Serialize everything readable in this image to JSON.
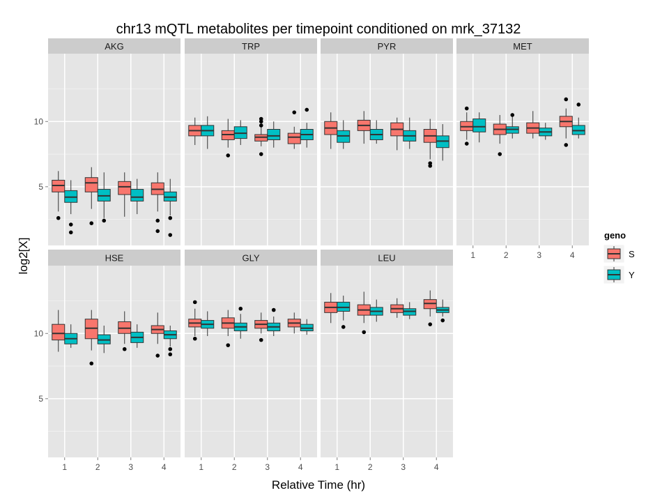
{
  "chart_data": {
    "type": "boxplot",
    "title": "chr13 mQTL metabolites per timepoint conditioned on mrk_37132",
    "xlabel": "Relative Time (hr)",
    "ylabel": "log2[X]",
    "x_categories": [
      "1",
      "2",
      "3",
      "4"
    ],
    "y_ticks": [
      5,
      10
    ],
    "ylim": [
      0.5,
      15.2
    ],
    "ncol": 4,
    "grid": true,
    "legend": {
      "title": "geno",
      "position": "right",
      "entries": [
        {
          "key": "S",
          "color": "#F8766D"
        },
        {
          "key": "Y",
          "color": "#00BFC4"
        }
      ]
    },
    "panels": [
      {
        "name": "AKG",
        "boxes": {
          "S": [
            {
              "time": "1",
              "whislo": 3.1,
              "q1": 4.6,
              "med": 5.1,
              "q3": 5.5,
              "whishi": 6.2,
              "outliers": [
                2.6
              ]
            },
            {
              "time": "2",
              "whislo": 3.3,
              "q1": 4.6,
              "med": 5.3,
              "q3": 5.7,
              "whishi": 6.5,
              "outliers": [
                2.2
              ]
            },
            {
              "time": "3",
              "whislo": 2.7,
              "q1": 4.4,
              "med": 5.0,
              "q3": 5.4,
              "whishi": 6.1,
              "outliers": []
            },
            {
              "time": "4",
              "whislo": 3.1,
              "q1": 4.4,
              "med": 4.8,
              "q3": 5.3,
              "whishi": 6.1,
              "outliers": [
                2.4,
                1.6
              ]
            }
          ],
          "Y": [
            {
              "time": "1",
              "whislo": 2.9,
              "q1": 3.8,
              "med": 4.2,
              "q3": 4.7,
              "whishi": 5.5,
              "outliers": [
                2.1,
                1.5
              ]
            },
            {
              "time": "2",
              "whislo": 2.6,
              "q1": 3.9,
              "med": 4.3,
              "q3": 4.8,
              "whishi": 6.1,
              "outliers": [
                2.4
              ]
            },
            {
              "time": "3",
              "whislo": 2.9,
              "q1": 3.9,
              "med": 4.2,
              "q3": 4.8,
              "whishi": 5.6,
              "outliers": []
            },
            {
              "time": "4",
              "whislo": 2.8,
              "q1": 3.9,
              "med": 4.2,
              "q3": 4.6,
              "whishi": 5.6,
              "outliers": [
                2.6,
                1.3
              ]
            }
          ]
        }
      },
      {
        "name": "TRP",
        "boxes": {
          "S": [
            {
              "time": "1",
              "whislo": 8.2,
              "q1": 8.9,
              "med": 9.3,
              "q3": 9.7,
              "whishi": 10.3,
              "outliers": []
            },
            {
              "time": "2",
              "whislo": 8.0,
              "q1": 8.6,
              "med": 9.0,
              "q3": 9.3,
              "whishi": 10.2,
              "outliers": [
                7.4
              ]
            },
            {
              "time": "3",
              "whislo": 8.1,
              "q1": 8.5,
              "med": 8.8,
              "q3": 9.0,
              "whishi": 9.6,
              "outliers": [
                10.2,
                10.0,
                9.7,
                7.5
              ]
            },
            {
              "time": "4",
              "whislo": 7.9,
              "q1": 8.3,
              "med": 8.8,
              "q3": 9.1,
              "whishi": 9.6,
              "outliers": [
                10.7
              ]
            }
          ],
          "Y": [
            {
              "time": "1",
              "whislo": 7.9,
              "q1": 8.9,
              "med": 9.3,
              "q3": 9.7,
              "whishi": 10.4,
              "outliers": []
            },
            {
              "time": "2",
              "whislo": 8.2,
              "q1": 8.7,
              "med": 9.1,
              "q3": 9.6,
              "whishi": 10.1,
              "outliers": []
            },
            {
              "time": "3",
              "whislo": 8.0,
              "q1": 8.6,
              "med": 8.9,
              "q3": 9.4,
              "whishi": 10.0,
              "outliers": []
            },
            {
              "time": "4",
              "whislo": 8.0,
              "q1": 8.6,
              "med": 9.0,
              "q3": 9.4,
              "whishi": 9.9,
              "outliers": [
                10.9
              ]
            }
          ]
        }
      },
      {
        "name": "PYR",
        "boxes": {
          "S": [
            {
              "time": "1",
              "whislo": 7.9,
              "q1": 9.0,
              "med": 9.5,
              "q3": 10.0,
              "whishi": 10.7,
              "outliers": []
            },
            {
              "time": "2",
              "whislo": 8.3,
              "q1": 9.3,
              "med": 9.7,
              "q3": 10.1,
              "whishi": 10.8,
              "outliers": []
            },
            {
              "time": "3",
              "whislo": 7.8,
              "q1": 8.9,
              "med": 9.4,
              "q3": 9.9,
              "whishi": 10.3,
              "outliers": []
            },
            {
              "time": "4",
              "whislo": 7.1,
              "q1": 8.4,
              "med": 8.9,
              "q3": 9.4,
              "whishi": 10.2,
              "outliers": [
                6.8,
                6.6
              ]
            }
          ],
          "Y": [
            {
              "time": "1",
              "whislo": 7.9,
              "q1": 8.4,
              "med": 8.9,
              "q3": 9.3,
              "whishi": 10.1,
              "outliers": []
            },
            {
              "time": "2",
              "whislo": 8.3,
              "q1": 8.6,
              "med": 9.0,
              "q3": 9.4,
              "whishi": 10.1,
              "outliers": []
            },
            {
              "time": "3",
              "whislo": 7.9,
              "q1": 8.5,
              "med": 8.9,
              "q3": 9.3,
              "whishi": 10.3,
              "outliers": []
            },
            {
              "time": "4",
              "whislo": 7.0,
              "q1": 8.0,
              "med": 8.5,
              "q3": 8.9,
              "whishi": 9.8,
              "outliers": []
            }
          ]
        }
      },
      {
        "name": "MET",
        "boxes": {
          "S": [
            {
              "time": "1",
              "whislo": 8.6,
              "q1": 9.3,
              "med": 9.6,
              "q3": 10.0,
              "whishi": 10.7,
              "outliers": [
                11.0,
                8.3
              ]
            },
            {
              "time": "2",
              "whislo": 8.3,
              "q1": 9.0,
              "med": 9.4,
              "q3": 9.8,
              "whishi": 10.5,
              "outliers": [
                7.5
              ]
            },
            {
              "time": "3",
              "whislo": 8.7,
              "q1": 9.1,
              "med": 9.5,
              "q3": 9.9,
              "whishi": 10.8,
              "outliers": []
            },
            {
              "time": "4",
              "whislo": 8.7,
              "q1": 9.6,
              "med": 10.0,
              "q3": 10.4,
              "whishi": 11.0,
              "outliers": [
                11.7,
                8.2
              ]
            }
          ],
          "Y": [
            {
              "time": "1",
              "whislo": 8.4,
              "q1": 9.2,
              "med": 9.6,
              "q3": 10.2,
              "whishi": 10.7,
              "outliers": []
            },
            {
              "time": "2",
              "whislo": 8.7,
              "q1": 9.1,
              "med": 9.4,
              "q3": 9.6,
              "whishi": 10.5,
              "outliers": [
                10.5
              ]
            },
            {
              "time": "3",
              "whislo": 8.6,
              "q1": 8.9,
              "med": 9.2,
              "q3": 9.5,
              "whishi": 9.9,
              "outliers": []
            },
            {
              "time": "4",
              "whislo": 8.7,
              "q1": 9.0,
              "med": 9.3,
              "q3": 9.7,
              "whishi": 10.3,
              "outliers": [
                11.3
              ]
            }
          ]
        }
      },
      {
        "name": "HSE",
        "boxes": {
          "S": [
            {
              "time": "1",
              "whislo": 8.6,
              "q1": 9.5,
              "med": 10.0,
              "q3": 10.7,
              "whishi": 11.8,
              "outliers": []
            },
            {
              "time": "2",
              "whislo": 8.7,
              "q1": 9.6,
              "med": 10.4,
              "q3": 11.1,
              "whishi": 11.8,
              "outliers": [
                7.7
              ]
            },
            {
              "time": "3",
              "whislo": 9.2,
              "q1": 10.0,
              "med": 10.4,
              "q3": 10.9,
              "whishi": 11.7,
              "outliers": [
                8.8
              ]
            },
            {
              "time": "4",
              "whislo": 9.2,
              "q1": 10.0,
              "med": 10.3,
              "q3": 10.6,
              "whishi": 11.6,
              "outliers": [
                8.3
              ]
            }
          ],
          "Y": [
            {
              "time": "1",
              "whislo": 8.9,
              "q1": 9.2,
              "med": 9.6,
              "q3": 10.0,
              "whishi": 10.7,
              "outliers": []
            },
            {
              "time": "2",
              "whislo": 8.5,
              "q1": 9.2,
              "med": 9.5,
              "q3": 9.9,
              "whishi": 10.6,
              "outliers": []
            },
            {
              "time": "3",
              "whislo": 8.9,
              "q1": 9.3,
              "med": 9.7,
              "q3": 10.1,
              "whishi": 10.7,
              "outliers": []
            },
            {
              "time": "4",
              "whislo": 9.0,
              "q1": 9.6,
              "med": 9.9,
              "q3": 10.2,
              "whishi": 10.6,
              "outliers": [
                8.8,
                8.4
              ]
            }
          ]
        }
      },
      {
        "name": "GLY",
        "boxes": {
          "S": [
            {
              "time": "1",
              "whislo": 9.8,
              "q1": 10.5,
              "med": 10.8,
              "q3": 11.1,
              "whishi": 11.9,
              "outliers": [
                12.4,
                9.6
              ]
            },
            {
              "time": "2",
              "whislo": 9.8,
              "q1": 10.4,
              "med": 10.8,
              "q3": 11.2,
              "whishi": 11.8,
              "outliers": [
                9.1
              ]
            },
            {
              "time": "3",
              "whislo": 10.0,
              "q1": 10.4,
              "med": 10.7,
              "q3": 11.0,
              "whishi": 11.6,
              "outliers": [
                9.5
              ]
            },
            {
              "time": "4",
              "whislo": 10.0,
              "q1": 10.5,
              "med": 10.8,
              "q3": 11.1,
              "whishi": 11.6,
              "outliers": []
            }
          ],
          "Y": [
            {
              "time": "1",
              "whislo": 9.8,
              "q1": 10.4,
              "med": 10.7,
              "q3": 11.0,
              "whishi": 11.7,
              "outliers": []
            },
            {
              "time": "2",
              "whislo": 9.6,
              "q1": 10.2,
              "med": 10.5,
              "q3": 10.8,
              "whishi": 11.5,
              "outliers": [
                11.9
              ]
            },
            {
              "time": "3",
              "whislo": 9.8,
              "q1": 10.2,
              "med": 10.5,
              "q3": 10.8,
              "whishi": 11.3,
              "outliers": [
                11.8
              ]
            },
            {
              "time": "4",
              "whislo": 9.9,
              "q1": 10.2,
              "med": 10.4,
              "q3": 10.7,
              "whishi": 11.1,
              "outliers": []
            }
          ]
        }
      },
      {
        "name": "LEU",
        "boxes": {
          "S": [
            {
              "time": "1",
              "whislo": 10.8,
              "q1": 11.6,
              "med": 12.0,
              "q3": 12.4,
              "whishi": 13.1,
              "outliers": []
            },
            {
              "time": "2",
              "whislo": 10.8,
              "q1": 11.4,
              "med": 11.8,
              "q3": 12.2,
              "whishi": 13.2,
              "outliers": [
                10.1
              ]
            },
            {
              "time": "3",
              "whislo": 11.2,
              "q1": 11.6,
              "med": 11.9,
              "q3": 12.2,
              "whishi": 12.7,
              "outliers": []
            },
            {
              "time": "4",
              "whislo": 11.3,
              "q1": 11.9,
              "med": 12.3,
              "q3": 12.6,
              "whishi": 13.3,
              "outliers": [
                10.7
              ]
            }
          ],
          "Y": [
            {
              "time": "1",
              "whislo": 11.0,
              "q1": 11.7,
              "med": 12.0,
              "q3": 12.4,
              "whishi": 12.9,
              "outliers": [
                10.5
              ]
            },
            {
              "time": "2",
              "whislo": 10.9,
              "q1": 11.4,
              "med": 11.7,
              "q3": 12.0,
              "whishi": 12.6,
              "outliers": []
            },
            {
              "time": "3",
              "whislo": 11.1,
              "q1": 11.4,
              "med": 11.7,
              "q3": 11.9,
              "whishi": 12.4,
              "outliers": []
            },
            {
              "time": "4",
              "whislo": 11.3,
              "q1": 11.6,
              "med": 11.8,
              "q3": 12.0,
              "whishi": 12.6,
              "outliers": [
                11.0
              ]
            }
          ]
        }
      }
    ]
  }
}
